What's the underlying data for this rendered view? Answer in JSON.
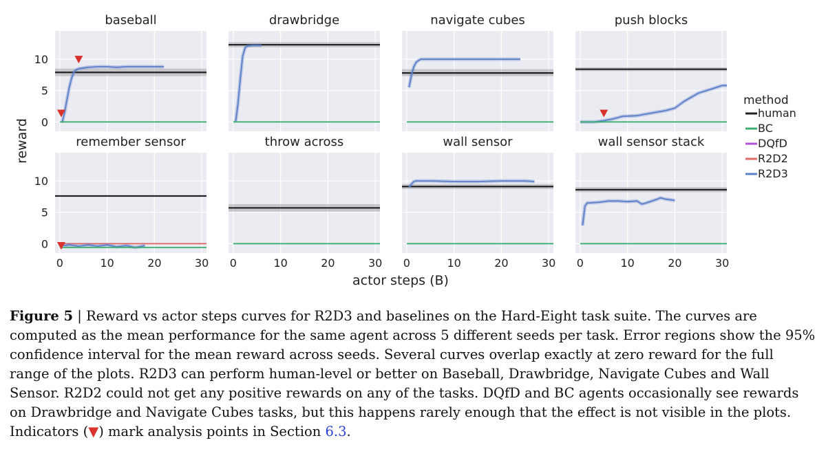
{
  "figure": {
    "ylabel": "reward",
    "xlabel": "actor steps (B)",
    "legend": {
      "title": "method",
      "items": [
        {
          "label": "human",
          "color": "#222222"
        },
        {
          "label": "BC",
          "color": "#3dae6f"
        },
        {
          "label": "DQfD",
          "color": "#b24fd6"
        },
        {
          "label": "R2D2",
          "color": "#e06a64"
        },
        {
          "label": "R2D3",
          "color": "#5b7fc9"
        }
      ]
    }
  },
  "chart_data": {
    "type": "line",
    "xlim": [
      -1,
      31
    ],
    "xticks": [
      0,
      10,
      20,
      30
    ],
    "ylim": [
      -1.5,
      14.5
    ],
    "yticks": [
      0,
      5,
      10
    ],
    "grid": true,
    "legend_position": "right",
    "panels": [
      {
        "title": "baseball",
        "human": {
          "value": 7.9,
          "ci": [
            7.3,
            8.5
          ]
        },
        "series": [
          {
            "name": "R2D3",
            "x": [
              0.5,
              1,
              1.5,
              2,
              2.5,
              3,
              3.5,
              4,
              5,
              6,
              8,
              10,
              12,
              14,
              16,
              18,
              20,
              22
            ],
            "y": [
              -0.1,
              1.5,
              3.5,
              5.5,
              7.0,
              8.0,
              8.3,
              8.5,
              8.6,
              8.7,
              8.8,
              8.8,
              8.7,
              8.8,
              8.8,
              8.8,
              8.8,
              8.8
            ]
          },
          {
            "name": "BC",
            "x": [
              0,
              31
            ],
            "y": [
              0,
              0
            ]
          }
        ],
        "markers": [
          {
            "x": 0.3,
            "y": 1.4
          },
          {
            "x": 4.0,
            "y": 10.0
          }
        ]
      },
      {
        "title": "drawbridge",
        "human": {
          "value": 12.3,
          "ci": [
            11.9,
            12.7
          ]
        },
        "series": [
          {
            "name": "R2D3",
            "x": [
              0.5,
              1,
              1.5,
              2,
              2.5,
              3,
              4,
              5,
              6
            ],
            "y": [
              0,
              3,
              7,
              10.5,
              11.8,
              12.1,
              12.2,
              12.2,
              12.2
            ]
          },
          {
            "name": "BC",
            "x": [
              0,
              31
            ],
            "y": [
              0,
              0
            ]
          }
        ],
        "markers": []
      },
      {
        "title": "navigate cubes",
        "human": {
          "value": 7.8,
          "ci": [
            7.3,
            8.4
          ]
        },
        "series": [
          {
            "name": "R2D3",
            "x": [
              0.5,
              1,
              1.5,
              2,
              2.5,
              3,
              5,
              10,
              15,
              20,
              24
            ],
            "y": [
              5.5,
              7.5,
              8.8,
              9.5,
              9.8,
              10.0,
              10.0,
              10.0,
              10.0,
              10.0,
              10.0
            ]
          },
          {
            "name": "BC",
            "x": [
              0,
              31
            ],
            "y": [
              0,
              0
            ]
          }
        ],
        "markers": []
      },
      {
        "title": "push blocks",
        "human": {
          "value": 8.4,
          "ci": [
            8.1,
            8.7
          ]
        },
        "series": [
          {
            "name": "R2D3",
            "x": [
              0,
              3,
              5,
              7,
              9,
              12,
              15,
              18,
              20,
              22,
              25,
              28,
              30,
              31
            ],
            "y": [
              0,
              0,
              0.2,
              0.5,
              0.9,
              1.0,
              1.4,
              1.8,
              2.2,
              3.3,
              4.6,
              5.3,
              5.8,
              5.8
            ]
          },
          {
            "name": "BC",
            "x": [
              0,
              31
            ],
            "y": [
              0,
              0
            ]
          }
        ],
        "markers": [
          {
            "x": 5.0,
            "y": 1.4
          }
        ]
      },
      {
        "title": "remember sensor",
        "human": {
          "value": 7.6,
          "ci": [
            7.5,
            7.7
          ]
        },
        "series": [
          {
            "name": "R2D2",
            "x": [
              0,
              31
            ],
            "y": [
              0,
              0
            ]
          },
          {
            "name": "R2D3",
            "x": [
              0.3,
              1,
              2,
              4,
              6,
              8,
              10,
              12,
              14,
              16,
              18
            ],
            "y": [
              -0.1,
              -0.3,
              -0.2,
              -0.4,
              -0.2,
              -0.4,
              -0.2,
              -0.5,
              -0.3,
              -0.6,
              -0.3
            ]
          },
          {
            "name": "BC",
            "x": [
              0,
              31
            ],
            "y": [
              -0.6,
              -0.6
            ]
          }
        ],
        "markers": [
          {
            "x": 0.3,
            "y": -0.3
          }
        ]
      },
      {
        "title": "throw across",
        "human": {
          "value": 5.7,
          "ci": [
            5.1,
            6.3
          ]
        },
        "series": [
          {
            "name": "BC",
            "x": [
              0,
              31
            ],
            "y": [
              0,
              0
            ]
          }
        ],
        "markers": []
      },
      {
        "title": "wall sensor",
        "human": {
          "value": 9.1,
          "ci": [
            8.7,
            9.5
          ]
        },
        "series": [
          {
            "name": "R2D3",
            "x": [
              0.5,
              1,
              1.5,
              2,
              3,
              5,
              10,
              15,
              20,
              25,
              27
            ],
            "y": [
              9.0,
              9.5,
              9.9,
              10.0,
              10.0,
              10.0,
              9.9,
              9.9,
              10.0,
              10.0,
              9.9
            ]
          },
          {
            "name": "BC",
            "x": [
              0,
              31
            ],
            "y": [
              0,
              0
            ]
          }
        ],
        "markers": []
      },
      {
        "title": "wall sensor stack",
        "human": {
          "value": 8.6,
          "ci": [
            8.2,
            9.0
          ]
        },
        "series": [
          {
            "name": "R2D3",
            "x": [
              0.5,
              1,
              1.5,
              2,
              4,
              6,
              8,
              10,
              12,
              13,
              14,
              16,
              17,
              18,
              20
            ],
            "y": [
              2.9,
              6.0,
              6.5,
              6.5,
              6.6,
              6.8,
              6.8,
              6.7,
              6.8,
              6.3,
              6.5,
              7.0,
              7.3,
              7.1,
              6.9
            ]
          },
          {
            "name": "BC",
            "x": [
              0,
              31
            ],
            "y": [
              0,
              0
            ]
          }
        ],
        "markers": []
      }
    ]
  },
  "caption": {
    "label": "Figure 5",
    "sep": " | ",
    "text_before_marker": "Reward vs actor steps curves for R2D3 and baselines on the Hard-Eight task suite. The curves are computed as the mean performance for the same agent across 5 different seeds per task. Error regions show the 95% confidence interval for the mean reward across seeds. Several curves overlap exactly at zero reward for the full range of the plots. R2D3 can perform human-level or better on Baseball, Drawbridge, Navigate Cubes and Wall Sensor. R2D2 could not get any positive rewards on any of the tasks. DQfD and BC agents occasionally see rewards on Drawbridge and Navigate Cubes tasks, but this happens rarely enough that the effect is not visible in the plots. Indicators (",
    "marker_symbol": "▼",
    "text_after_marker": ") mark analysis points in Section ",
    "section_ref": "6.3",
    "end": "."
  }
}
